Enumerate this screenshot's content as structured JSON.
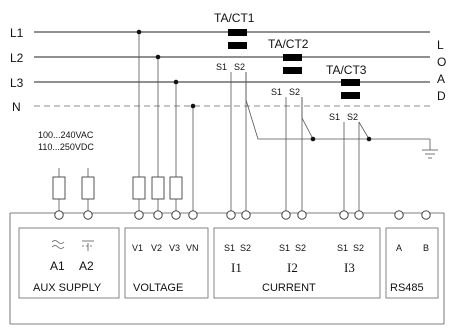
{
  "lines": {
    "l1": "L1",
    "l2": "L2",
    "l3": "L3",
    "n": "N"
  },
  "load": [
    "L",
    "O",
    "A",
    "D"
  ],
  "ct": [
    {
      "name": "TA/CT1",
      "s1": "S1",
      "s2": "S2"
    },
    {
      "name": "TA/CT2",
      "s1": "S1",
      "s2": "S2"
    },
    {
      "name": "TA/CT3",
      "s1": "S1",
      "s2": "S2"
    }
  ],
  "aux_supply_spec": {
    "ac": "100...240VAC",
    "dc": "110...250VDC"
  },
  "terminal_labels": {
    "a1": "A1",
    "a2": "A2",
    "v1": "V1",
    "v2": "V2",
    "v3": "V3",
    "vn": "VN",
    "i1_s1": "S1",
    "i1_s2": "S2",
    "i2_s1": "S1",
    "i2_s2": "S2",
    "i3_s1": "S1",
    "i3_s2": "S2",
    "rs_a": "A",
    "rs_b": "B"
  },
  "current_labels": {
    "i1": "I1",
    "i2": "I2",
    "i3": "I3"
  },
  "group_labels": {
    "aux": "AUX SUPPLY",
    "voltage": "VOLTAGE",
    "current": "CURRENT",
    "rs485": "RS485"
  }
}
